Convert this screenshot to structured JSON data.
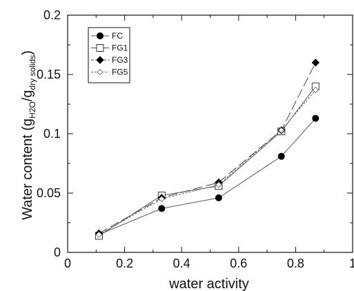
{
  "chart_data": {
    "type": "line",
    "xlabel": "water activity",
    "ylabel": {
      "main": "Water content (g",
      "sub1": "H2O",
      "mid": "/g",
      "sub2": "dry solids",
      "end": ")"
    },
    "xlim": [
      0,
      1
    ],
    "ylim": [
      0,
      0.2
    ],
    "xticks": [
      0,
      0.2,
      0.4,
      0.6,
      0.8,
      1
    ],
    "xtick_labels": [
      "0",
      "0.2",
      "0.4",
      "0.6",
      "0.8",
      "1"
    ],
    "yticks": [
      0,
      0.05,
      0.1,
      0.15,
      0.2
    ],
    "ytick_labels": [
      "0",
      "0.05",
      "0.1",
      "0.15",
      "0.2"
    ],
    "grid": false,
    "legend_position": "top-left",
    "x": [
      0.11,
      0.33,
      0.53,
      0.75,
      0.87
    ],
    "series": [
      {
        "name": "FC",
        "values": [
          0.015,
          0.037,
          0.046,
          0.081,
          0.113
        ],
        "marker": "filled-circle",
        "line": "solid"
      },
      {
        "name": "FG1",
        "values": [
          0.014,
          0.048,
          0.056,
          0.102,
          0.14
        ],
        "marker": "open-square",
        "line": "solid"
      },
      {
        "name": "FG3",
        "values": [
          0.016,
          0.046,
          0.059,
          0.103,
          0.16
        ],
        "marker": "filled-diamond",
        "line": "long-dash"
      },
      {
        "name": "FG5",
        "values": [
          0.015,
          0.045,
          0.057,
          0.103,
          0.137
        ],
        "marker": "open-diamond",
        "line": "short-dash"
      }
    ]
  }
}
